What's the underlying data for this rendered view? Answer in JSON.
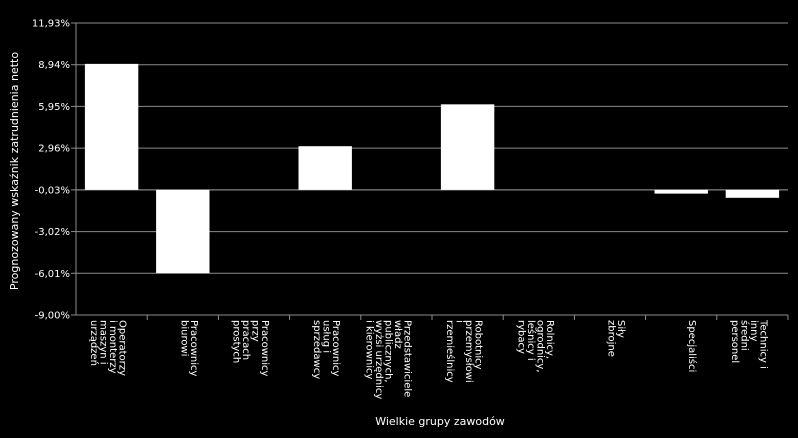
{
  "chart_data": {
    "type": "bar",
    "title": "",
    "xlabel": "Wielkie grupy zawodów",
    "ylabel": "Prognozowany wskaźnik zatrudnienia netto",
    "ylim": [
      -9.0,
      11.93
    ],
    "y_ticks": [
      "11,93%",
      "8,94%",
      "5,95%",
      "2,96%",
      "-0,03%",
      "-3,02%",
      "-6,01%",
      "-9,00%"
    ],
    "y_tick_values": [
      11.93,
      8.94,
      5.95,
      2.96,
      -0.03,
      -3.02,
      -6.01,
      -9.0
    ],
    "grid": true,
    "legend": "none",
    "bar_color": "#ffffff",
    "background": "#000000",
    "categories": [
      [
        "Operatorzy",
        "i monterzy",
        "maszyn i",
        "urządzeń"
      ],
      [
        "Pracownicy",
        "biurowi"
      ],
      [
        "Pracownicy",
        "przy",
        "pracach",
        "prostych"
      ],
      [
        "Pracownicy",
        "usług i",
        "sprzedawcy"
      ],
      [
        "Przedstawiciele",
        "władz",
        "publicznych,",
        "wyżsi urzędnicy",
        "i kierownicy"
      ],
      [
        "Robotnicy",
        "przemysłowi",
        "i",
        "rzemieślnicy"
      ],
      [
        "Rolnicy,",
        "ogrodnicy,",
        "leśnicy i",
        "rybacy"
      ],
      [
        "Siły",
        "zbrojne"
      ],
      [
        "Specjaliści"
      ],
      [
        "Technicy i",
        "inny",
        "średni",
        "personel"
      ]
    ],
    "values": [
      9.0,
      -6.0,
      0.0,
      3.1,
      0.0,
      6.1,
      0.0,
      0.0,
      -0.3,
      -0.6
    ]
  }
}
